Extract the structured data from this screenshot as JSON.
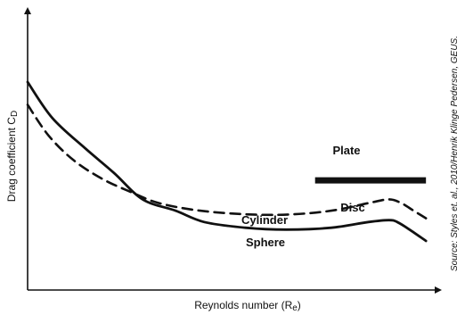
{
  "chart_data": {
    "type": "line",
    "title": "",
    "xlabel": "Reynolds number (R",
    "xlabel_sub": "e",
    "ylabel": "Drag coefficient C",
    "ylabel_sub": "D",
    "source": "Source: Styles et. al., 2010/Henrik Klinge Pedersen, GEUS.",
    "axis_ticks": "none",
    "grid": false,
    "series": [
      {
        "name": "Sphere",
        "style": "solid",
        "points": [
          [
            0.0,
            0.84
          ],
          [
            0.06,
            0.65
          ],
          [
            0.14,
            0.49
          ],
          [
            0.21,
            0.36
          ],
          [
            0.28,
            0.22
          ],
          [
            0.36,
            0.16
          ],
          [
            0.43,
            0.1
          ],
          [
            0.53,
            0.07
          ],
          [
            0.63,
            0.06
          ],
          [
            0.74,
            0.07
          ],
          [
            0.83,
            0.1
          ],
          [
            0.88,
            0.11
          ],
          [
            0.9,
            0.1
          ],
          [
            0.93,
            0.06
          ],
          [
            0.97,
            0.0
          ]
        ]
      },
      {
        "name": "Disc",
        "style": "dashed",
        "points": [
          [
            0.0,
            0.72
          ],
          [
            0.05,
            0.56
          ],
          [
            0.11,
            0.43
          ],
          [
            0.18,
            0.33
          ],
          [
            0.25,
            0.26
          ],
          [
            0.32,
            0.2
          ],
          [
            0.42,
            0.16
          ],
          [
            0.54,
            0.14
          ],
          [
            0.64,
            0.14
          ],
          [
            0.74,
            0.16
          ],
          [
            0.83,
            0.2
          ],
          [
            0.88,
            0.22
          ],
          [
            0.91,
            0.2
          ],
          [
            0.94,
            0.16
          ],
          [
            0.97,
            0.12
          ]
        ]
      },
      {
        "name": "Plate",
        "style": "solid-thick",
        "points": [
          [
            0.7,
            0.32
          ],
          [
            0.97,
            0.32
          ]
        ]
      }
    ],
    "annotations": [
      "Plate",
      "Disc",
      "Cylinder",
      "Sphere"
    ],
    "colors": {
      "line": "#111111"
    }
  }
}
